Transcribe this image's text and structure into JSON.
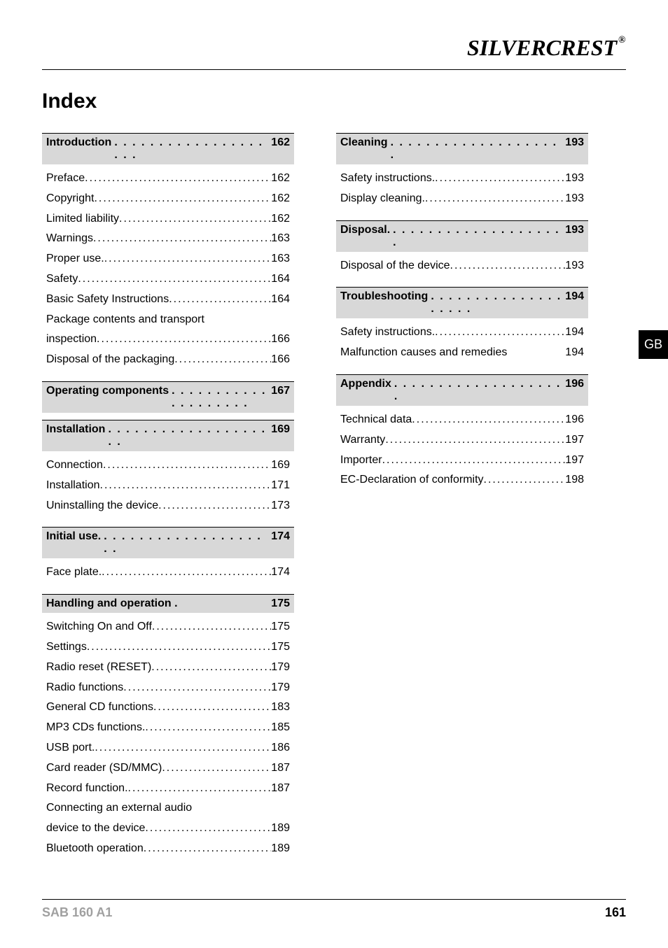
{
  "brand": {
    "silver": "SILVER",
    "crest": "CREST",
    "reg": "®"
  },
  "title": "Index",
  "sideTab": "GB",
  "footer": {
    "model": "SAB 160 A1",
    "page": "161"
  },
  "colors": {
    "sectionBg": "#d8d8d8",
    "footerModel": "#a0a0a0"
  },
  "left": [
    {
      "type": "section",
      "label": "Introduction",
      "page": "162",
      "items": [
        {
          "label": "Preface",
          "page": "162"
        },
        {
          "label": "Copyright",
          "page": "162"
        },
        {
          "label": "Limited liability",
          "page": "162"
        },
        {
          "label": "Warnings",
          "page": "163"
        },
        {
          "label": "Proper use.",
          "page": "163"
        },
        {
          "label": "Safety",
          "page": "164"
        },
        {
          "label": "Basic Safety Instructions",
          "page": "164"
        },
        {
          "label_line1": "Package contents and transport",
          "label_line2": "inspection",
          "page": "166",
          "multiline": true
        },
        {
          "label": "Disposal of the packaging",
          "page": "166"
        }
      ]
    },
    {
      "type": "section",
      "label": "Operating components",
      "page": "167",
      "items": []
    },
    {
      "type": "section",
      "label": "Installation",
      "page": "169",
      "items": [
        {
          "label": "Connection",
          "page": "169"
        },
        {
          "label": "Installation",
          "page": "171"
        },
        {
          "label": "Uninstalling the device",
          "page": "173"
        }
      ]
    },
    {
      "type": "section",
      "label": "Initial use.",
      "page": "174",
      "items": [
        {
          "label": "Face plate.",
          "page": "174"
        }
      ]
    },
    {
      "type": "section",
      "label": "Handling and operation  .",
      "page": "175",
      "nodots": true,
      "items": [
        {
          "label": "Switching On and Off",
          "page": "175"
        },
        {
          "label": "Settings",
          "page": "175"
        },
        {
          "label": "Radio reset (RESET)",
          "page": "179"
        },
        {
          "label": "Radio functions",
          "page": "179"
        },
        {
          "label": "General CD functions",
          "page": "183"
        },
        {
          "label": "MP3 CDs functions.",
          "page": "185"
        },
        {
          "label": "USB port.",
          "page": "186"
        },
        {
          "label": "Card reader (SD/MMC)",
          "page": "187"
        },
        {
          "label": "Record function.",
          "page": "187"
        },
        {
          "label_line1": "Connecting an external audio",
          "label_line2": "device to the device",
          "page": "189",
          "multiline": true
        },
        {
          "label": "Bluetooth operation",
          "page": "189"
        }
      ]
    }
  ],
  "right": [
    {
      "type": "section",
      "label": "Cleaning",
      "page": "193",
      "items": [
        {
          "label": "Safety instructions.",
          "page": "193"
        },
        {
          "label": "Display cleaning.",
          "page": "193"
        }
      ]
    },
    {
      "type": "section",
      "label": "Disposal.",
      "page": "193",
      "items": [
        {
          "label": "Disposal of the device",
          "page": "193"
        }
      ]
    },
    {
      "type": "section",
      "label": "Troubleshooting",
      "page": "194",
      "items": [
        {
          "label": "Safety instructions.",
          "page": "194"
        },
        {
          "label": "Malfunction causes and remedies ",
          "page": "194",
          "nodots": true
        }
      ]
    },
    {
      "type": "section",
      "label": "Appendix",
      "page": "196",
      "items": [
        {
          "label": "Technical data",
          "page": "196"
        },
        {
          "label": "Warranty",
          "page": "197"
        },
        {
          "label": "Importer",
          "page": "197"
        },
        {
          "label": "EC-Declaration of conformity",
          "page": "198"
        }
      ]
    }
  ]
}
